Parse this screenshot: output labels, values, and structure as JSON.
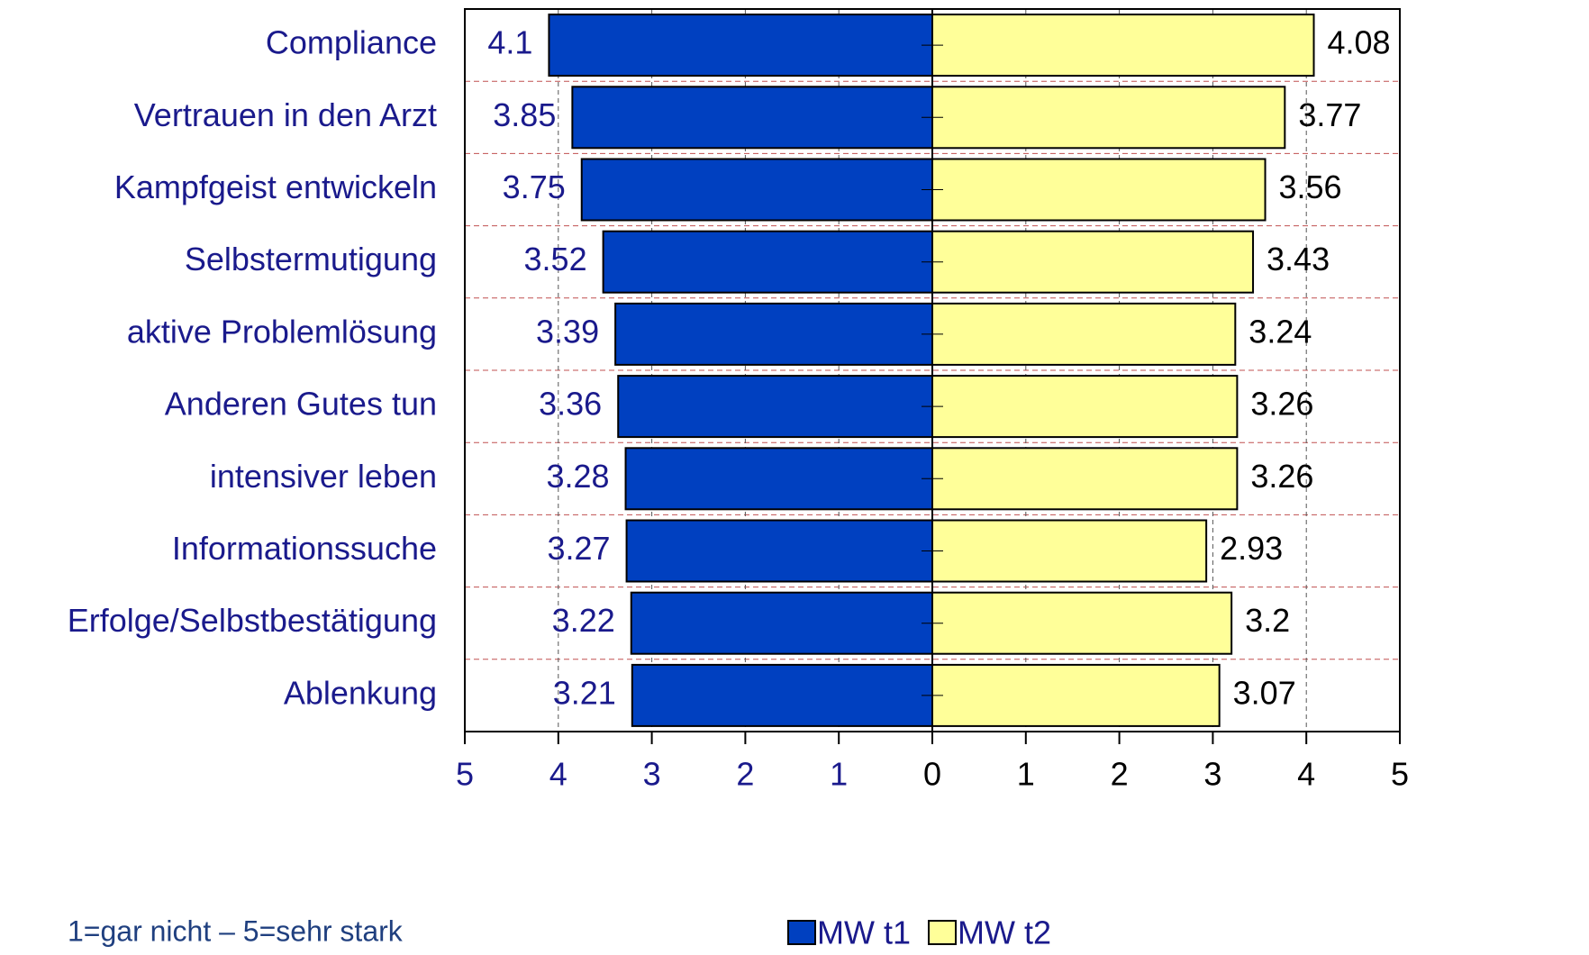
{
  "chart_data": {
    "type": "butterfly",
    "categories": [
      "Compliance",
      "Vertrauen in den Arzt",
      "Kampfgeist entwickeln",
      "Selbstermutigung",
      "aktive Problemlösung",
      "Anderen Gutes tun",
      "intensiver leben",
      "Informationssuche",
      "Erfolge/Selbstbestätigung",
      "Ablenkung"
    ],
    "series": [
      {
        "name": "MW t1",
        "color": "#0040c0",
        "values": [
          4.1,
          3.85,
          3.75,
          3.52,
          3.39,
          3.36,
          3.28,
          3.27,
          3.22,
          3.21
        ]
      },
      {
        "name": "MW t2",
        "color": "#ffff99",
        "values": [
          4.08,
          3.77,
          3.56,
          3.43,
          3.24,
          3.26,
          3.26,
          2.93,
          3.2,
          3.07
        ]
      }
    ],
    "xlim": [
      -5,
      5
    ],
    "xticks": [
      {
        "value": -5,
        "label": "5"
      },
      {
        "value": -4,
        "label": "4"
      },
      {
        "value": -3,
        "label": "3"
      },
      {
        "value": -2,
        "label": "2"
      },
      {
        "value": -1,
        "label": "1"
      },
      0,
      1,
      2,
      3,
      4,
      5
    ],
    "grid": true,
    "note": "1=gar nicht – 5=sehr stark"
  }
}
